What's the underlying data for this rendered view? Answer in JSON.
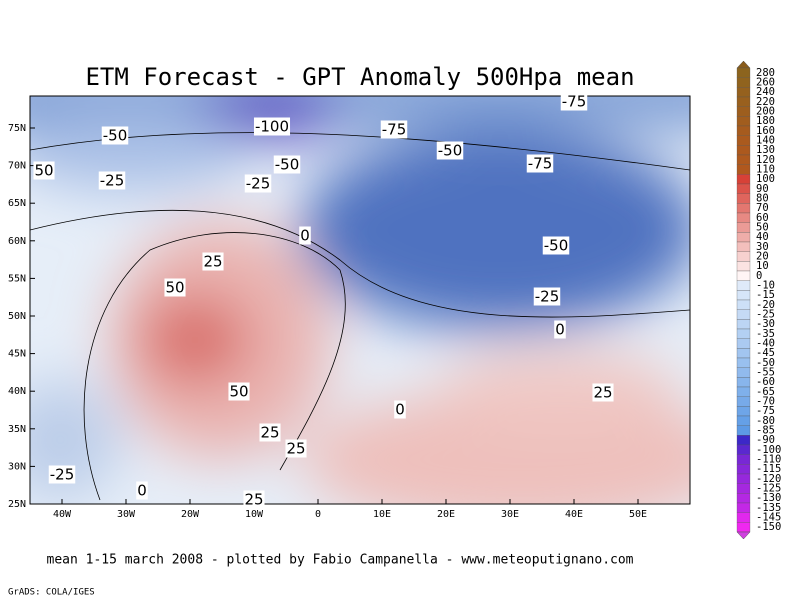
{
  "header": {
    "title": "ETM Forecast - GPT Anomaly 500Hpa mean"
  },
  "map": {
    "lat_labels": [
      "75N",
      "70N",
      "65N",
      "60N",
      "55N",
      "50N",
      "45N",
      "40N",
      "35N",
      "30N",
      "25N"
    ],
    "lon_labels": [
      "40W",
      "30W",
      "20W",
      "10W",
      "0",
      "10E",
      "20E",
      "30E",
      "40E",
      "50E"
    ],
    "contour_labels": [
      -50,
      -100,
      -75,
      -75,
      "50",
      -25,
      -50,
      -25,
      -50,
      -75,
      "0",
      25,
      50,
      -50,
      -25,
      "0",
      50,
      25,
      25,
      "0",
      25,
      -25,
      "0",
      "25"
    ]
  },
  "colorbar": {
    "labels": [
      280,
      260,
      240,
      220,
      200,
      180,
      160,
      140,
      130,
      120,
      110,
      100,
      90,
      80,
      70,
      60,
      50,
      40,
      30,
      20,
      10,
      0,
      -10,
      -15,
      -20,
      -25,
      -30,
      -35,
      -40,
      -45,
      -50,
      -55,
      -60,
      -65,
      -70,
      -75,
      -80,
      -85,
      -90,
      -100,
      -110,
      -115,
      -120,
      -125,
      -130,
      -135,
      -145,
      -150
    ]
  },
  "footer": {
    "caption": "mean 1-15 march 2008 - plotted by Fabio Campanella - www.meteoputignano.com",
    "credit": "GrADS: COLA/IGES"
  }
}
